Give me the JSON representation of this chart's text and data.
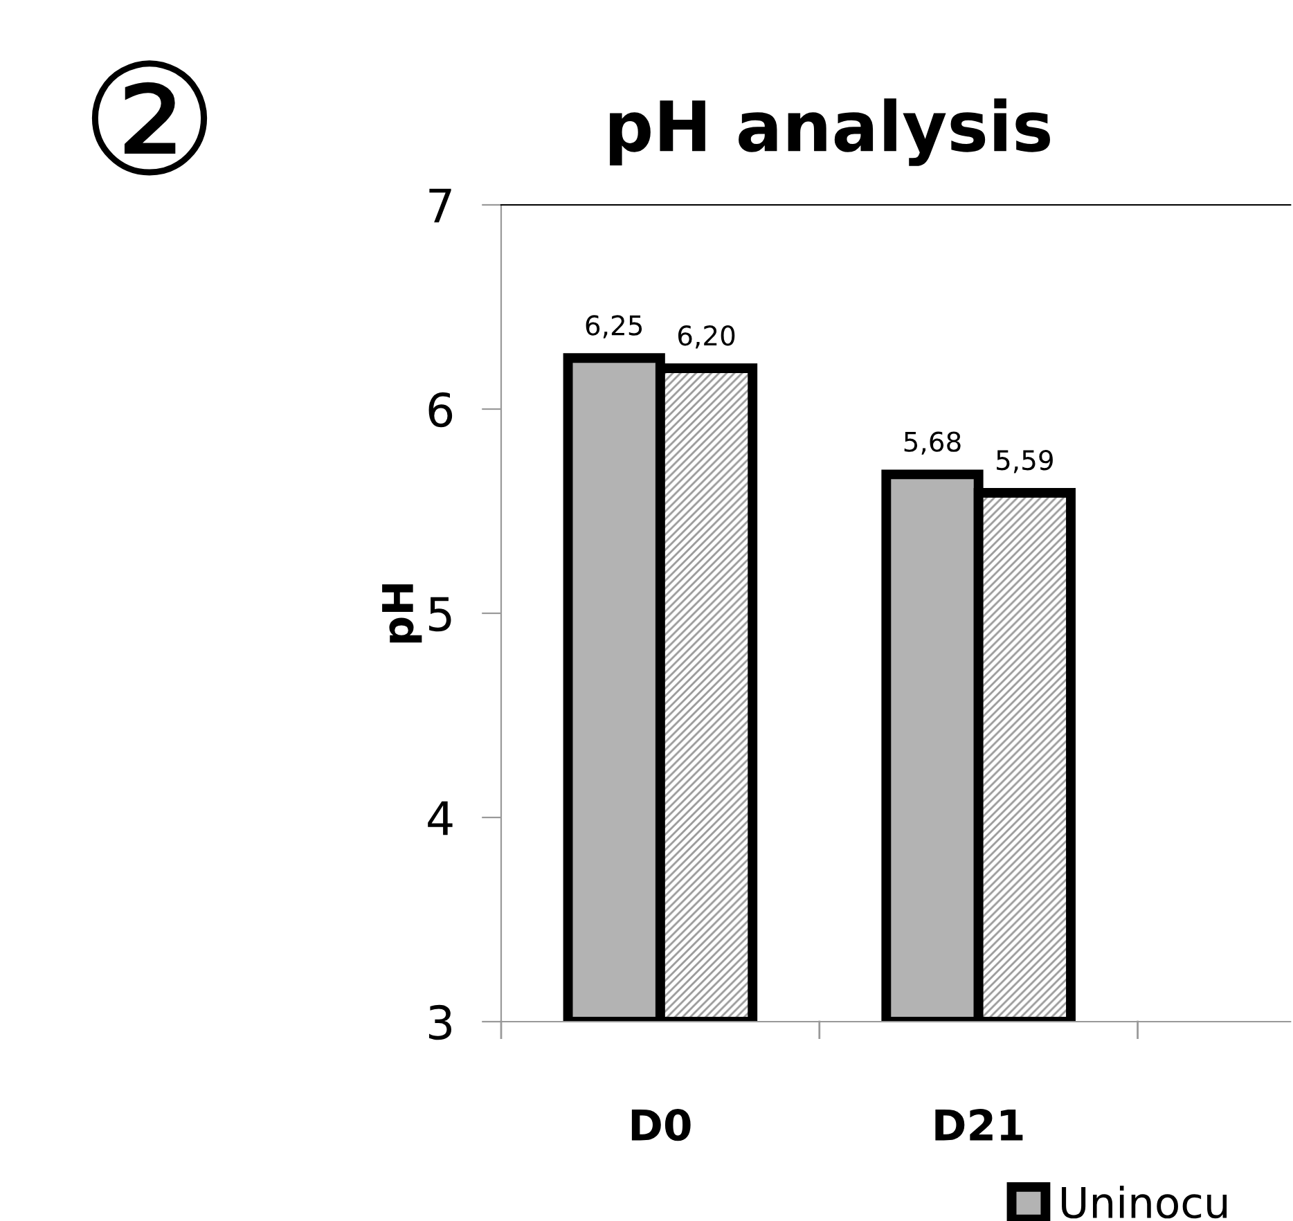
{
  "chart_data": {
    "type": "bar",
    "title": "pH analysis",
    "ylabel": "pH",
    "categories": [
      "D0",
      "D21"
    ],
    "series": [
      {
        "name": "Uninocu",
        "color": "#b3b3b3",
        "values": [
          6.25,
          5.68
        ],
        "value_labels": [
          "6,25",
          "5,68"
        ]
      },
      {
        "color": "#9a9a9a",
        "values": [
          6.2,
          5.59
        ],
        "value_labels": [
          "6,20",
          "5,59"
        ]
      }
    ],
    "ylim": [
      3,
      7
    ],
    "yticks": [
      3,
      4,
      5,
      6,
      7
    ],
    "grid": false,
    "legend": "bottom",
    "annotations": [
      "②"
    ]
  }
}
